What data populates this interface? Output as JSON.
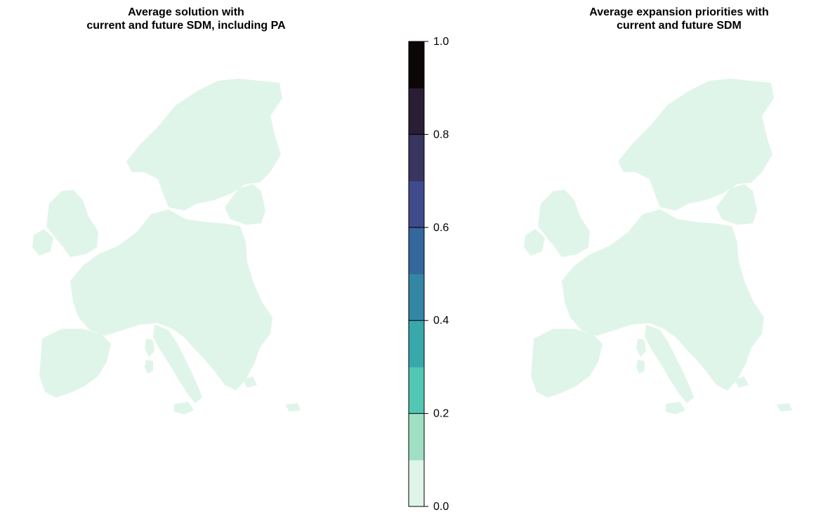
{
  "left_panel": {
    "title_line1": "Average solution with",
    "title_line2": "current and future SDM,  including PA"
  },
  "right_panel": {
    "title_line1": "Average expansion priorities with",
    "title_line2": "current and future SDM"
  },
  "colorbar": {
    "min": 0.0,
    "max": 1.0,
    "bins": 10,
    "colors": [
      "#dff5e9",
      "#9fe0c4",
      "#52c7b3",
      "#38a8ad",
      "#3487a4",
      "#34679c",
      "#3f4b8d",
      "#393561",
      "#2a1d34",
      "#0c0607"
    ],
    "tick_values": [
      "0.0",
      "0.2",
      "0.4",
      "0.6",
      "0.8",
      "1.0"
    ]
  },
  "map_colors": {
    "land_base": "#dff5e9",
    "water": "#ffffff"
  }
}
